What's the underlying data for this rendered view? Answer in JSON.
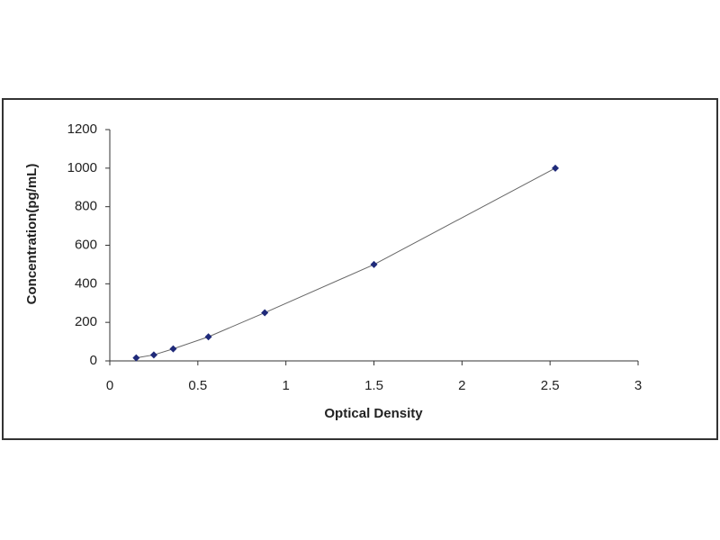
{
  "chart_data": {
    "type": "scatter",
    "x_label": "Optical Density",
    "y_label": "Concentration(pg/mL)",
    "x": [
      0.15,
      0.25,
      0.36,
      0.56,
      0.88,
      1.5,
      2.53
    ],
    "series": [
      {
        "color": "#1f2a7a",
        "values": [
          15.6,
          31.2,
          62.5,
          125,
          250,
          500,
          1000
        ]
      }
    ],
    "line": true,
    "line_color": "#666666",
    "xlim": [
      0,
      3
    ],
    "xticks": [
      0,
      0.5,
      1,
      1.5,
      2,
      2.5,
      3
    ],
    "ylim": [
      0,
      1200
    ],
    "yticks": [
      0,
      200,
      400,
      600,
      800,
      1000,
      1200
    ],
    "grid": false
  }
}
